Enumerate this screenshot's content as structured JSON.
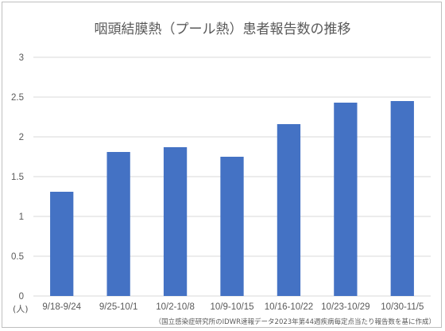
{
  "chart_data": {
    "type": "bar",
    "title": "咽頭結膜熱（プール熱）患者報告数の推移",
    "y_unit": "(人)",
    "source": "（国立感染症研究所のIDWR速報データ2023年第44週疾病毎定点当たり報告数を基に作成）",
    "categories": [
      "9/18-9/24",
      "9/25-10/1",
      "10/2-10/8",
      "10/9-10/15",
      "10/16-10/22",
      "10/23-10/29",
      "10/30-11/5"
    ],
    "series": [
      {
        "values": [
          1.31,
          1.81,
          1.87,
          1.75,
          2.16,
          2.43,
          2.45
        ]
      }
    ],
    "ylim": [
      0,
      3
    ],
    "yticks": [
      0,
      0.5,
      1,
      1.5,
      2,
      2.5,
      3
    ],
    "ytick_labels": [
      "0",
      "0.5",
      "1",
      "1.5",
      "2",
      "2.5",
      "3"
    ],
    "grid": true,
    "legend": "none",
    "bar_color": "#4472c4"
  }
}
